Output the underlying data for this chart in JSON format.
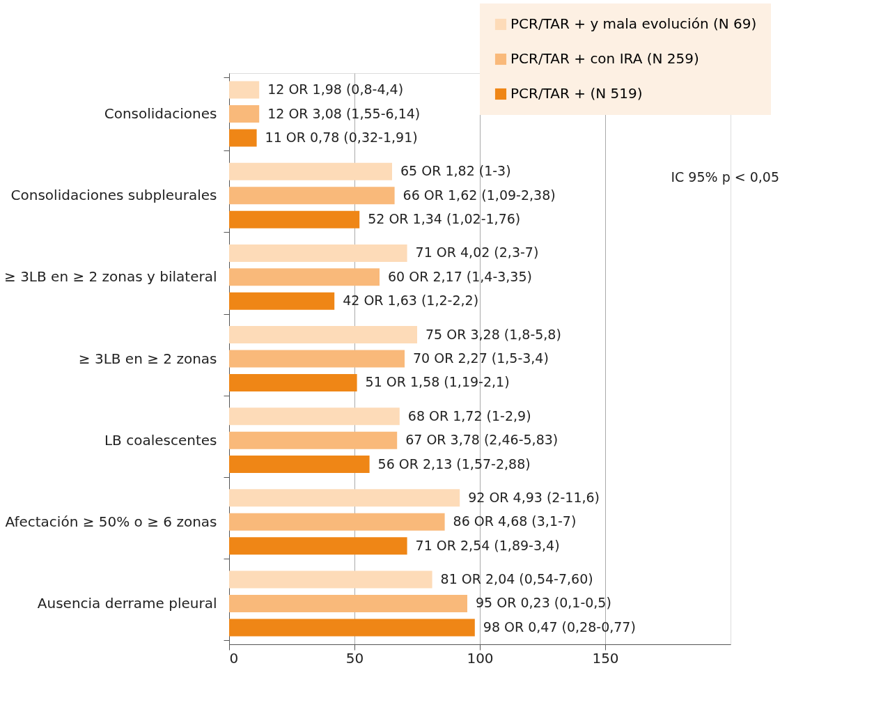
{
  "chart_data": {
    "type": "bar",
    "orientation": "horizontal",
    "categories": [
      "Consolidaciones",
      "Consolidaciones subpleurales",
      "≥ 3LB en ≥ 2 zonas y bilateral",
      "≥ 3LB en ≥ 2 zonas",
      "LB coalescentes",
      "Afectación ≥ 50% o ≥ 6 zonas",
      "Ausencia derrame pleural"
    ],
    "series": [
      {
        "name": "PCR/TAR + y mala evolución (N 69)",
        "color": "#fddbb8",
        "values": [
          12,
          65,
          71,
          75,
          68,
          92,
          81
        ],
        "value_labels": [
          "12 OR 1,98 (0,8-4,4)",
          "65 OR 1,82 (1-3)",
          "71 OR 4,02 (2,3-7)",
          "75 OR 3,28 (1,8-5,8)",
          "68 OR 1,72 (1-2,9)",
          "92 OR 4,93 (2-11,6)",
          "81 OR 2,04 (0,54-7,60)"
        ]
      },
      {
        "name": "PCR/TAR + con IRA (N 259)",
        "color": "#f9b97a",
        "values": [
          12,
          66,
          60,
          70,
          67,
          86,
          95
        ],
        "value_labels": [
          "12 OR 3,08 (1,55-6,14)",
          "66 OR 1,62 (1,09-2,38)",
          "60 OR 2,17 (1,4-3,35)",
          "70 OR 2,27 (1,5-3,4)",
          "67 OR 3,78 (2,46-5,83)",
          "86 OR 4,68 (3,1-7)",
          "95 OR 0,23 (0,1-0,5)"
        ]
      },
      {
        "name": "PCR/TAR + (N 519)",
        "color": "#ef8616",
        "values": [
          11,
          52,
          42,
          51,
          56,
          71,
          98
        ],
        "value_labels": [
          "11 OR 0,78 (0,32-1,91)",
          "52 OR 1,34 (1,02-1,76)",
          "42 OR 1,63 (1,2-2,2)",
          "51 OR 1,58 (1,19-2,1)",
          "56 OR 2,13 (1,57-2,88)",
          "71 OR 2,54 (1,89-3,4)",
          "98 OR 0,47 (0,28-0,77)"
        ]
      }
    ],
    "xlim": [
      0,
      200
    ],
    "xticks": [
      0,
      50,
      100,
      150
    ],
    "grid": "x",
    "legend": "top right",
    "annotations": [
      "IC 95% p < 0,05"
    ]
  }
}
